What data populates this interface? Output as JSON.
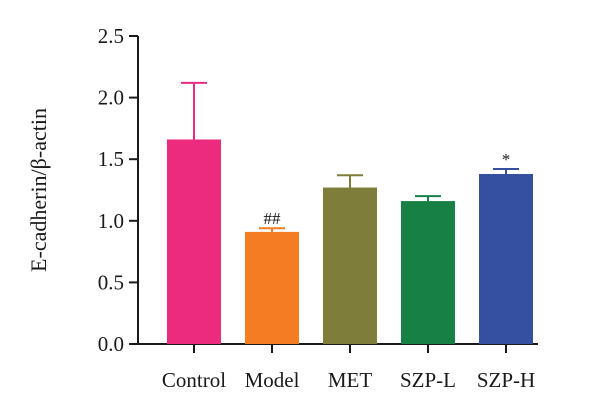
{
  "chart_data": {
    "type": "bar",
    "ylabel": "E-cadherin/β-actin",
    "xlabel": "",
    "ylim": [
      0,
      2.5
    ],
    "yticks": [
      "0.0",
      "0.5",
      "1.0",
      "1.5",
      "2.0",
      "2.5"
    ],
    "grid": false,
    "categories": [
      "Control",
      "Model",
      "MET",
      "SZP-L",
      "SZP-H"
    ],
    "values": [
      1.66,
      0.91,
      1.27,
      1.16,
      1.38
    ],
    "errors": [
      0.46,
      0.03,
      0.1,
      0.04,
      0.04
    ],
    "annotations": [
      "",
      "##",
      "",
      "",
      "*"
    ],
    "colors": [
      "#ec2b7f",
      "#f47d24",
      "#7f7d3a",
      "#178044",
      "#3550a0"
    ]
  }
}
